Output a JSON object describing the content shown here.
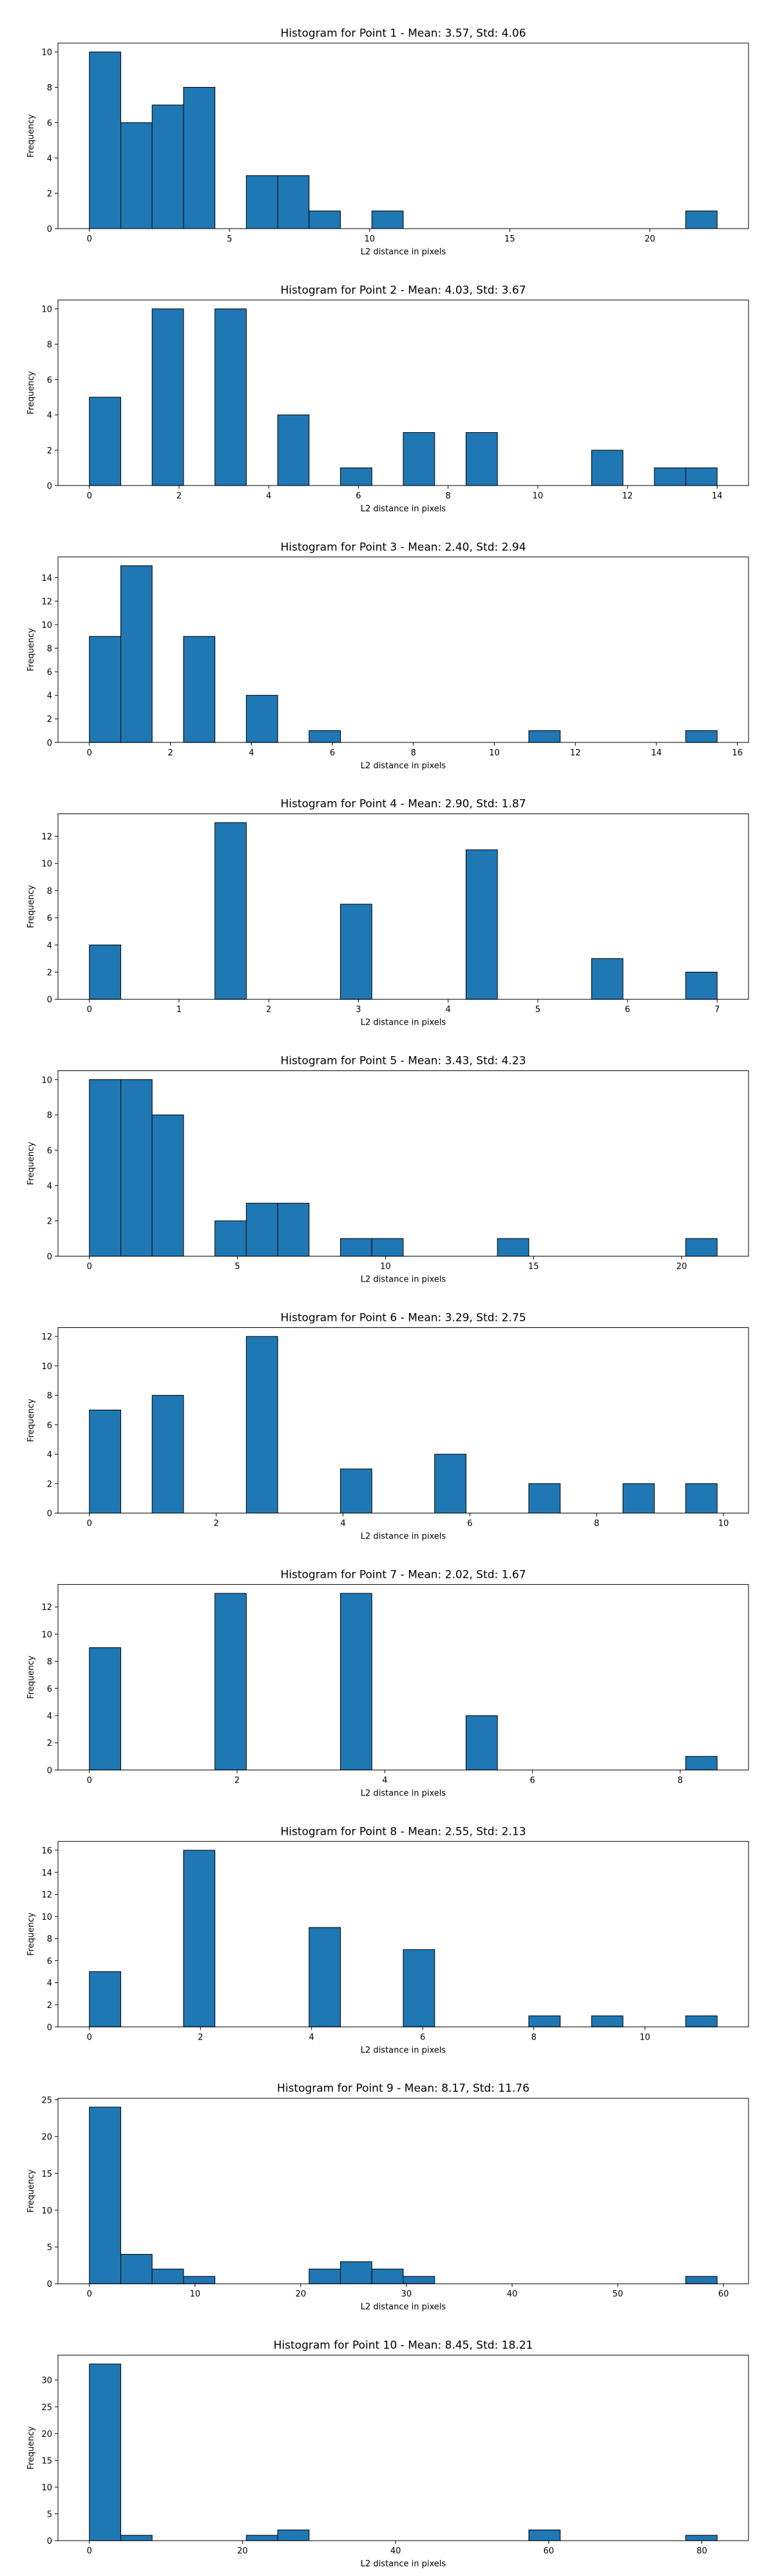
{
  "chart_data": [
    {
      "type": "histogram",
      "title": "Histogram for Point 1 - Mean: 3.57, Std: 4.06",
      "x_label": "L2 distance in pixels",
      "y_label": "Frequency",
      "color": "#1f77b4",
      "bins": [
        0,
        1.12,
        2.24,
        3.36,
        4.48,
        5.6,
        6.72,
        7.84,
        8.96,
        10.08,
        11.2,
        12.32,
        13.44,
        14.56,
        15.68,
        16.8,
        17.92,
        19.04,
        20.16,
        21.28,
        22.4
      ],
      "values": [
        10,
        6,
        7,
        8,
        0,
        3,
        3,
        1,
        0,
        1,
        0,
        0,
        0,
        0,
        0,
        0,
        0,
        0,
        0,
        1
      ],
      "xlim": [
        -1.12,
        23.52
      ],
      "xticks": [
        0,
        5,
        10,
        15,
        20
      ],
      "ylim": [
        0,
        10.5
      ],
      "yticks": [
        0,
        2,
        4,
        6,
        8,
        10
      ]
    },
    {
      "type": "histogram",
      "title": "Histogram for Point 2 - Mean: 4.03, Std: 3.67",
      "x_label": "L2 distance in pixels",
      "y_label": "Frequency",
      "color": "#1f77b4",
      "bins": [
        0,
        0.7,
        1.4,
        2.1,
        2.8,
        3.5,
        4.2,
        4.9,
        5.6,
        6.3,
        7,
        7.7,
        8.4,
        9.1,
        9.8,
        10.5,
        11.2,
        11.9,
        12.6,
        13.3,
        14
      ],
      "values": [
        5,
        0,
        10,
        0,
        10,
        0,
        4,
        0,
        1,
        0,
        3,
        0,
        3,
        0,
        0,
        0,
        2,
        0,
        1,
        1
      ],
      "xlim": [
        -0.7,
        14.7
      ],
      "xticks": [
        0,
        2,
        4,
        6,
        8,
        10,
        12,
        14
      ],
      "ylim": [
        0,
        10.5
      ],
      "yticks": [
        0,
        2,
        4,
        6,
        8,
        10
      ]
    },
    {
      "type": "histogram",
      "title": "Histogram for Point 3 - Mean: 2.40, Std: 2.94",
      "x_label": "L2 distance in pixels",
      "y_label": "Frequency",
      "color": "#1f77b4",
      "bins": [
        0,
        0.775,
        1.55,
        2.325,
        3.1,
        3.875,
        4.65,
        5.425,
        6.2,
        6.975,
        7.75,
        8.525,
        9.3,
        10.075,
        10.85,
        11.625,
        12.4,
        13.175,
        13.95,
        14.725,
        15.5
      ],
      "values": [
        9,
        15,
        0,
        9,
        0,
        4,
        0,
        1,
        0,
        0,
        0,
        0,
        0,
        0,
        1,
        0,
        0,
        0,
        0,
        1
      ],
      "xlim": [
        -0.775,
        16.275
      ],
      "xticks": [
        0,
        2,
        4,
        6,
        8,
        10,
        12,
        14,
        16
      ],
      "ylim": [
        0,
        15.75
      ],
      "yticks": [
        0,
        2,
        4,
        6,
        8,
        10,
        12,
        14
      ]
    },
    {
      "type": "histogram",
      "title": "Histogram for Point 4 - Mean: 2.90, Std: 1.87",
      "x_label": "L2 distance in pixels",
      "y_label": "Frequency",
      "color": "#1f77b4",
      "bins": [
        0,
        0.35,
        0.7,
        1.05,
        1.4,
        1.75,
        2.1,
        2.45,
        2.8,
        3.15,
        3.5,
        3.85,
        4.2,
        4.55,
        4.9,
        5.25,
        5.6,
        5.95,
        6.3,
        6.65,
        7
      ],
      "values": [
        4,
        0,
        0,
        0,
        13,
        0,
        0,
        0,
        7,
        0,
        0,
        0,
        11,
        0,
        0,
        0,
        3,
        0,
        0,
        2
      ],
      "xlim": [
        -0.35,
        7.35
      ],
      "xticks": [
        0,
        1,
        2,
        3,
        4,
        5,
        6,
        7
      ],
      "ylim": [
        0,
        13.65
      ],
      "yticks": [
        0,
        2,
        4,
        6,
        8,
        10,
        12
      ]
    },
    {
      "type": "histogram",
      "title": "Histogram for Point 5 - Mean: 3.43, Std: 4.23",
      "x_label": "L2 distance in pixels",
      "y_label": "Frequency",
      "color": "#1f77b4",
      "bins": [
        0,
        1.06,
        2.12,
        3.18,
        4.24,
        5.3,
        6.36,
        7.42,
        8.48,
        9.54,
        10.6,
        11.66,
        12.72,
        13.78,
        14.84,
        15.9,
        16.96,
        18.02,
        19.08,
        20.14,
        21.2
      ],
      "values": [
        10,
        10,
        8,
        0,
        2,
        3,
        3,
        0,
        1,
        1,
        0,
        0,
        0,
        1,
        0,
        0,
        0,
        0,
        0,
        1
      ],
      "xlim": [
        -1.06,
        22.26
      ],
      "xticks": [
        0,
        5,
        10,
        15,
        20
      ],
      "ylim": [
        0,
        10.5
      ],
      "yticks": [
        0,
        2,
        4,
        6,
        8,
        10
      ]
    },
    {
      "type": "histogram",
      "title": "Histogram for Point 6 - Mean: 3.29, Std: 2.75",
      "x_label": "L2 distance in pixels",
      "y_label": "Frequency",
      "color": "#1f77b4",
      "bins": [
        0,
        0.495,
        0.99,
        1.485,
        1.98,
        2.475,
        2.97,
        3.465,
        3.96,
        4.455,
        4.95,
        5.445,
        5.94,
        6.435,
        6.93,
        7.425,
        7.92,
        8.415,
        8.91,
        9.405,
        9.9
      ],
      "values": [
        7,
        0,
        8,
        0,
        0,
        12,
        0,
        0,
        3,
        0,
        0,
        4,
        0,
        0,
        2,
        0,
        0,
        2,
        0,
        2
      ],
      "xlim": [
        -0.495,
        10.395
      ],
      "xticks": [
        0,
        2,
        4,
        6,
        8,
        10
      ],
      "ylim": [
        0,
        12.6
      ],
      "yticks": [
        0,
        2,
        4,
        6,
        8,
        10,
        12
      ]
    },
    {
      "type": "histogram",
      "title": "Histogram for Point 7 - Mean: 2.02, Std: 1.67",
      "x_label": "L2 distance in pixels",
      "y_label": "Frequency",
      "color": "#1f77b4",
      "bins": [
        0,
        0.425,
        0.85,
        1.275,
        1.7,
        2.125,
        2.55,
        2.975,
        3.4,
        3.825,
        4.25,
        4.675,
        5.1,
        5.525,
        5.95,
        6.375,
        6.8,
        7.225,
        7.65,
        8.075,
        8.5
      ],
      "values": [
        9,
        0,
        0,
        0,
        13,
        0,
        0,
        0,
        13,
        0,
        0,
        0,
        4,
        0,
        0,
        0,
        0,
        0,
        0,
        1
      ],
      "xlim": [
        -0.425,
        8.925
      ],
      "xticks": [
        0,
        2,
        4,
        6,
        8
      ],
      "ylim": [
        0,
        13.65
      ],
      "yticks": [
        0,
        2,
        4,
        6,
        8,
        10,
        12
      ]
    },
    {
      "type": "histogram",
      "title": "Histogram for Point 8 - Mean: 2.55, Std: 2.13",
      "x_label": "L2 distance in pixels",
      "y_label": "Frequency",
      "color": "#1f77b4",
      "bins": [
        0,
        0.565,
        1.13,
        1.695,
        2.26,
        2.825,
        3.39,
        3.955,
        4.52,
        5.085,
        5.65,
        6.215,
        6.78,
        7.345,
        7.91,
        8.475,
        9.04,
        9.605,
        10.17,
        10.735,
        11.3
      ],
      "values": [
        5,
        0,
        0,
        16,
        0,
        0,
        0,
        9,
        0,
        0,
        7,
        0,
        0,
        0,
        1,
        0,
        1,
        0,
        0,
        1
      ],
      "xlim": [
        -0.565,
        11.865
      ],
      "xticks": [
        0,
        2,
        4,
        6,
        8,
        10
      ],
      "ylim": [
        0,
        16.8
      ],
      "yticks": [
        0,
        2,
        4,
        6,
        8,
        10,
        12,
        14,
        16
      ]
    },
    {
      "type": "histogram",
      "title": "Histogram for Point 9 - Mean: 8.17, Std: 11.76",
      "x_label": "L2 distance in pixels",
      "y_label": "Frequency",
      "color": "#1f77b4",
      "bins": [
        0,
        2.97,
        5.94,
        8.91,
        11.88,
        14.85,
        17.82,
        20.79,
        23.76,
        26.73,
        29.7,
        32.67,
        35.64,
        38.61,
        41.58,
        44.55,
        47.52,
        50.49,
        53.46,
        56.43,
        59.4
      ],
      "values": [
        24,
        4,
        2,
        1,
        0,
        0,
        0,
        2,
        3,
        2,
        1,
        0,
        0,
        0,
        0,
        0,
        0,
        0,
        0,
        1
      ],
      "xlim": [
        -2.97,
        62.37
      ],
      "xticks": [
        0,
        10,
        20,
        30,
        40,
        50,
        60
      ],
      "ylim": [
        0,
        25.2
      ],
      "yticks": [
        0,
        5,
        10,
        15,
        20,
        25
      ]
    },
    {
      "type": "histogram",
      "title": "Histogram for Point 10 - Mean: 8.45, Std: 18.21",
      "x_label": "L2 distance in pixels",
      "y_label": "Frequency",
      "color": "#1f77b4",
      "bins": [
        0,
        4.1,
        8.2,
        12.3,
        16.4,
        20.5,
        24.6,
        28.7,
        32.8,
        36.9,
        41,
        45.1,
        49.2,
        53.3,
        57.4,
        61.5,
        65.6,
        69.7,
        73.8,
        77.9,
        82
      ],
      "values": [
        33,
        1,
        0,
        0,
        0,
        1,
        2,
        0,
        0,
        0,
        0,
        0,
        0,
        0,
        2,
        0,
        0,
        0,
        0,
        1
      ],
      "xlim": [
        -4.1,
        86.1
      ],
      "xticks": [
        0,
        20,
        40,
        60,
        80
      ],
      "ylim": [
        0,
        34.65
      ],
      "yticks": [
        0,
        5,
        10,
        15,
        20,
        25,
        30
      ]
    }
  ]
}
